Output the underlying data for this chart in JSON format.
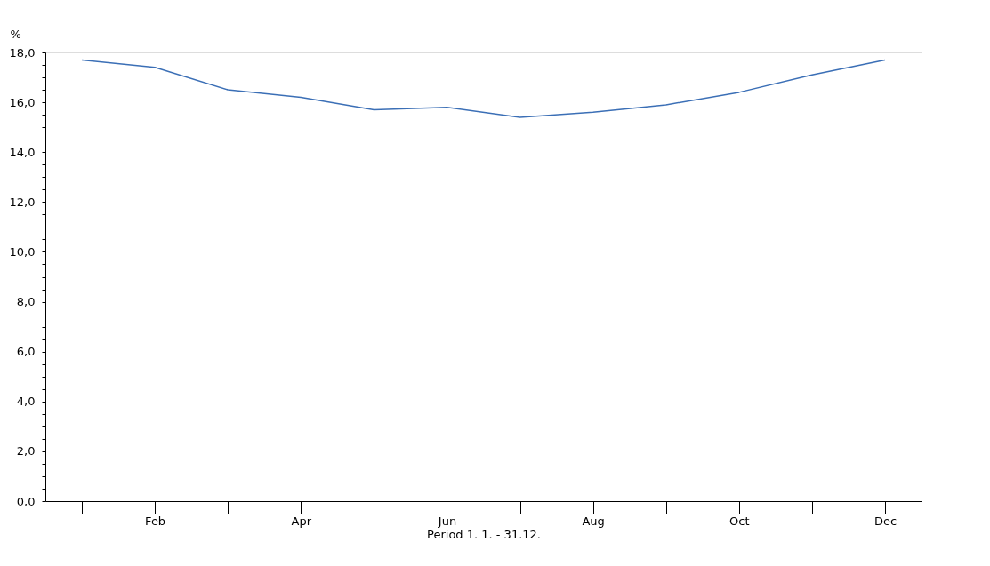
{
  "chart_data": {
    "type": "line",
    "ylabel": "%",
    "xlabel": "Period 1. 1. - 31.12.",
    "categories": [
      null,
      "Feb",
      null,
      "Apr",
      null,
      "Jun",
      null,
      "Aug",
      null,
      "Oct",
      null,
      "Dec"
    ],
    "series": [
      {
        "color": "#3b6fb6",
        "values": [
          17.7,
          17.4,
          16.5,
          16.2,
          15.7,
          15.8,
          15.4,
          15.6,
          15.9,
          16.4,
          17.1,
          17.7
        ]
      }
    ],
    "ylim": [
      0,
      18
    ],
    "yticks": [
      {
        "value": 0,
        "label": "0,0"
      },
      {
        "value": 0.5,
        "label": null
      },
      {
        "value": 1,
        "label": null
      },
      {
        "value": 1.5,
        "label": null
      },
      {
        "value": 2,
        "label": "2,0"
      },
      {
        "value": 2.5,
        "label": null
      },
      {
        "value": 3,
        "label": null
      },
      {
        "value": 3.5,
        "label": null
      },
      {
        "value": 4,
        "label": "4,0"
      },
      {
        "value": 4.5,
        "label": null
      },
      {
        "value": 5,
        "label": null
      },
      {
        "value": 5.5,
        "label": null
      },
      {
        "value": 6,
        "label": "6,0"
      },
      {
        "value": 6.5,
        "label": null
      },
      {
        "value": 7,
        "label": null
      },
      {
        "value": 7.5,
        "label": null
      },
      {
        "value": 8,
        "label": "8,0"
      },
      {
        "value": 8.5,
        "label": null
      },
      {
        "value": 9,
        "label": null
      },
      {
        "value": 9.5,
        "label": null
      },
      {
        "value": 10,
        "label": "10,0"
      },
      {
        "value": 10.5,
        "label": null
      },
      {
        "value": 11,
        "label": null
      },
      {
        "value": 11.5,
        "label": null
      },
      {
        "value": 12,
        "label": "12,0"
      },
      {
        "value": 12.5,
        "label": null
      },
      {
        "value": 13,
        "label": null
      },
      {
        "value": 13.5,
        "label": null
      },
      {
        "value": 14,
        "label": "14,0"
      },
      {
        "value": 14.5,
        "label": null
      },
      {
        "value": 15,
        "label": null
      },
      {
        "value": 15.5,
        "label": null
      },
      {
        "value": 16,
        "label": "16,0"
      },
      {
        "value": 16.5,
        "label": null
      },
      {
        "value": 17,
        "label": null
      },
      {
        "value": 17.5,
        "label": null
      },
      {
        "value": 18,
        "label": "18,0"
      }
    ],
    "grid": false,
    "legend": false,
    "marker": "none",
    "line_style": "solid"
  }
}
